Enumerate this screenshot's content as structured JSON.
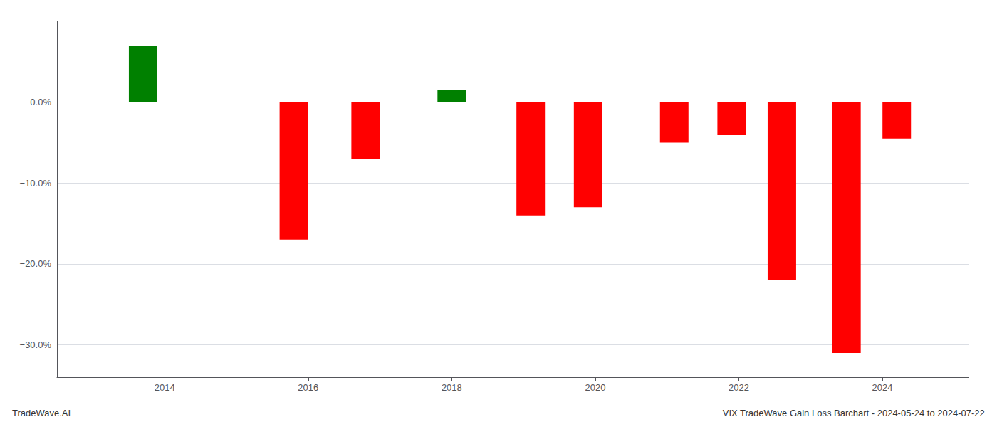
{
  "chart_data": {
    "type": "bar",
    "title": "VIX TradeWave Gain Loss Barchart - 2024-05-24 to 2024-07-22",
    "annotations": [
      "TradeWave.AI"
    ],
    "x": [
      2013.7,
      2015.8,
      2016.8,
      2018.0,
      2019.1,
      2019.9,
      2021.1,
      2021.9,
      2022.6,
      2023.5,
      2024.2
    ],
    "values": [
      7.0,
      -17.0,
      -7.0,
      1.5,
      -14.0,
      -13.0,
      -5.0,
      -4.0,
      -22.0,
      -31.0,
      -4.5
    ],
    "colors": [
      "#008000",
      "#ff0000",
      "#ff0000",
      "#008000",
      "#ff0000",
      "#ff0000",
      "#ff0000",
      "#ff0000",
      "#ff0000",
      "#ff0000",
      "#ff0000"
    ],
    "xlim": [
      2012.5,
      2025.2
    ],
    "xticks": [
      2014,
      2016,
      2018,
      2020,
      2022,
      2024
    ],
    "ylim": [
      -34,
      10
    ],
    "yticks": [
      {
        "value": 0.0,
        "label": "0.0%"
      },
      {
        "value": -10.0,
        "label": "−10.0%"
      },
      {
        "value": -20.0,
        "label": "−20.0%"
      },
      {
        "value": -30.0,
        "label": "−30.0%"
      }
    ],
    "grid": true
  }
}
